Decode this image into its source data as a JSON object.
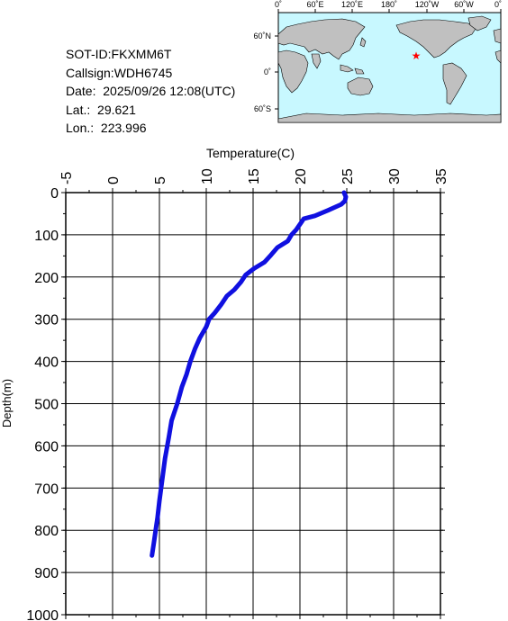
{
  "info": {
    "sot_id": "SOT-ID:FKXMM6T",
    "callsign": "Callsign:WDH6745",
    "date_label": "Date:",
    "date_value": "2025/09/26 12:08(UTC)",
    "lat_label": "Lat.:",
    "lat_value": "29.621",
    "lon_label": "Lon.:",
    "lon_value": "223.996"
  },
  "map": {
    "top_ticks": [
      "0˚",
      "60˚E",
      "120˚E",
      "180˚",
      "120˚W",
      "60˚W",
      "0˚"
    ],
    "left_ticks": [
      "60˚N",
      "0˚",
      "60˚S"
    ],
    "ocean_color": "#c8f8ff",
    "land_color": "#c0c0c0",
    "marker": {
      "lat": 29.621,
      "lon": 223.996,
      "symbol": "star",
      "color": "#ff0000"
    }
  },
  "chart_data": {
    "type": "line",
    "xlabel": "Temperature(C)",
    "ylabel": "Depth(m)",
    "xlim": [
      -5,
      35
    ],
    "ylim": [
      0,
      1000
    ],
    "y_inverted": true,
    "x_ticks": [
      "-5",
      "0",
      "5",
      "10",
      "15",
      "20",
      "25",
      "30",
      "35"
    ],
    "y_ticks": [
      "0",
      "100",
      "200",
      "300",
      "400",
      "500",
      "600",
      "700",
      "800",
      "900",
      "1000"
    ],
    "grid": true,
    "line_color": "#1010e0",
    "series": [
      {
        "x": [
          24.7,
          24.8,
          24.9,
          24.8,
          24.4,
          23.0,
          21.6,
          20.4,
          20.1,
          19.6,
          19.1,
          18.7,
          17.6,
          16.9,
          16.2,
          15.1,
          14.2,
          13.7,
          13.0,
          12.2,
          11.6,
          10.9,
          10.3,
          10.0,
          9.3,
          8.8,
          8.3,
          7.9,
          7.4,
          6.9,
          6.3,
          6.0,
          5.6,
          5.3,
          5.0,
          4.8,
          4.6,
          4.4,
          4.2
        ],
        "y": [
          0,
          5,
          10,
          20,
          28,
          42,
          55,
          62,
          72,
          88,
          100,
          115,
          130,
          148,
          165,
          180,
          195,
          212,
          230,
          245,
          265,
          285,
          300,
          318,
          345,
          370,
          400,
          430,
          460,
          500,
          540,
          580,
          630,
          680,
          730,
          770,
          800,
          830,
          860
        ]
      }
    ]
  }
}
